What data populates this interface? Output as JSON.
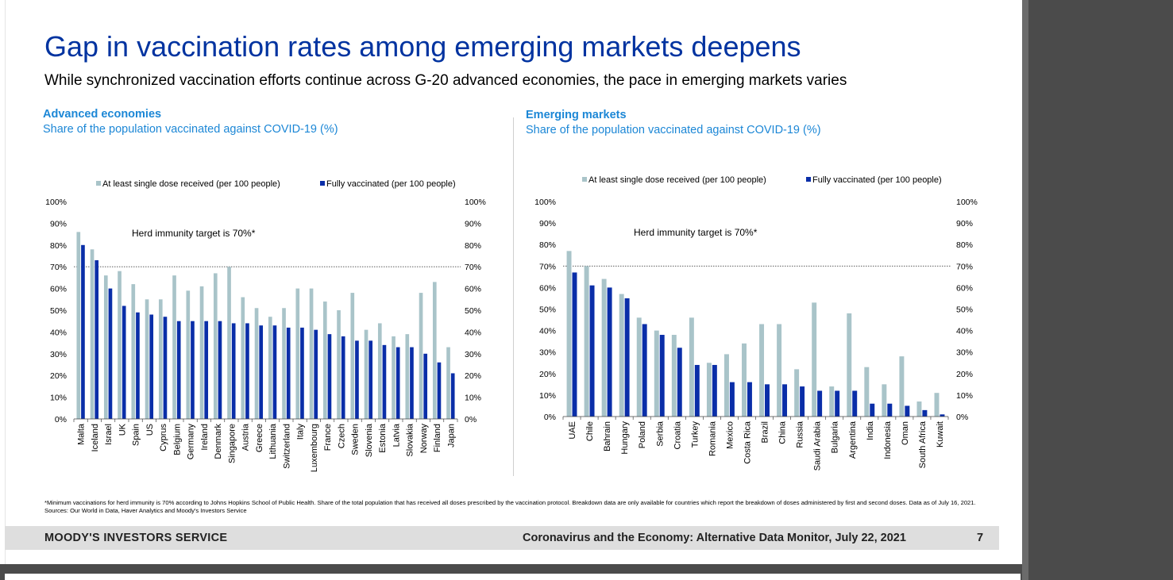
{
  "page": {
    "title": "Gap in vaccination rates among emerging markets deepens",
    "subtitle": "While synchronized vaccination efforts continue across G-20 advanced economies, the pace in emerging markets varies",
    "footnote": "*Minimum vaccinations for herd immunity is 70% according to Johns Hopkins School of Public Health. Share of the total population that has received all doses prescribed by the vaccination protocol. Breakdown data are only available for countries which report the breakdown of doses administered by first and second doses. Data as of July 16, 2021.",
    "sources": "Sources: Our World in Data, Haver Analytics and Moody's Investors Service",
    "footer_left": "MOODY'S INVESTORS SERVICE",
    "footer_right": "Coronavirus and the Economy: Alternative Data Monitor, July 22, 2021",
    "page_number": "7"
  },
  "colors": {
    "title_blue": "#0033a0",
    "panel_blue": "#1c87d6",
    "single_dose": "#a9c4c9",
    "fully_vaccinated": "#0a2ea8"
  },
  "chart_data": [
    {
      "type": "bar",
      "title": "Advanced economies",
      "subtitle": "Share of the population vaccinated against COVID-19 (%)",
      "annotation": "Herd immunity target is 70%*",
      "threshold": 70,
      "ylim": [
        0,
        100
      ],
      "yticks": [
        "0%",
        "10%",
        "20%",
        "30%",
        "40%",
        "50%",
        "60%",
        "70%",
        "80%",
        "90%",
        "100%"
      ],
      "legend_position": "top",
      "categories": [
        "Malta",
        "Iceland",
        "Israel",
        "UK",
        "Spain",
        "US",
        "Cyprus",
        "Belgium",
        "Germany",
        "Ireland",
        "Denmark",
        "Singapore",
        "Austria",
        "Greece",
        "Lithuania",
        "Switzerland",
        "Italy",
        "Luxembourg",
        "France",
        "Czech",
        "Sweden",
        "Slovenia",
        "Estonia",
        "Latvia",
        "Slovakia",
        "Norway",
        "Finland",
        "Japan"
      ],
      "series": [
        {
          "name": "At least single dose received (per 100 people)",
          "values": [
            86,
            78,
            66,
            68,
            62,
            55,
            55,
            66,
            59,
            61,
            67,
            70,
            56,
            51,
            47,
            51,
            60,
            60,
            54,
            50,
            58,
            41,
            44,
            38,
            39,
            58,
            63,
            33
          ]
        },
        {
          "name": "Fully vaccinated (per 100 people)",
          "values": [
            80,
            73,
            60,
            52,
            49,
            48,
            47,
            45,
            45,
            45,
            45,
            44,
            44,
            43,
            43,
            42,
            42,
            41,
            39,
            38,
            36,
            36,
            34,
            33,
            33,
            30,
            26,
            21
          ]
        }
      ]
    },
    {
      "type": "bar",
      "title": "Emerging markets",
      "subtitle": "Share of the population vaccinated against COVID-19 (%)",
      "annotation": "Herd immunity target is 70%*",
      "threshold": 70,
      "ylim": [
        0,
        100
      ],
      "yticks": [
        "0%",
        "10%",
        "20%",
        "30%",
        "40%",
        "50%",
        "60%",
        "70%",
        "80%",
        "90%",
        "100%"
      ],
      "legend_position": "top",
      "categories": [
        "UAE",
        "Chile",
        "Bahrain",
        "Hungary",
        "Poland",
        "Serbia",
        "Croatia",
        "Turkey",
        "Romania",
        "Mexico",
        "Costa Rica",
        "Brazil",
        "China",
        "Russia",
        "Saudi Arabia",
        "Bulgaria",
        "Argentina",
        "India",
        "Indonesia",
        "Oman",
        "South Africa",
        "Kuwait"
      ],
      "series": [
        {
          "name": "At least single dose received (per 100 people)",
          "values": [
            77,
            70,
            64,
            57,
            46,
            40,
            38,
            46,
            25,
            29,
            34,
            43,
            43,
            22,
            53,
            14,
            48,
            23,
            15,
            28,
            7,
            11
          ]
        },
        {
          "name": "Fully vaccinated (per 100 people)",
          "values": [
            67,
            61,
            60,
            55,
            43,
            38,
            32,
            24,
            24,
            16,
            16,
            15,
            15,
            14,
            12,
            12,
            12,
            6,
            6,
            5,
            3,
            1
          ]
        }
      ]
    }
  ]
}
